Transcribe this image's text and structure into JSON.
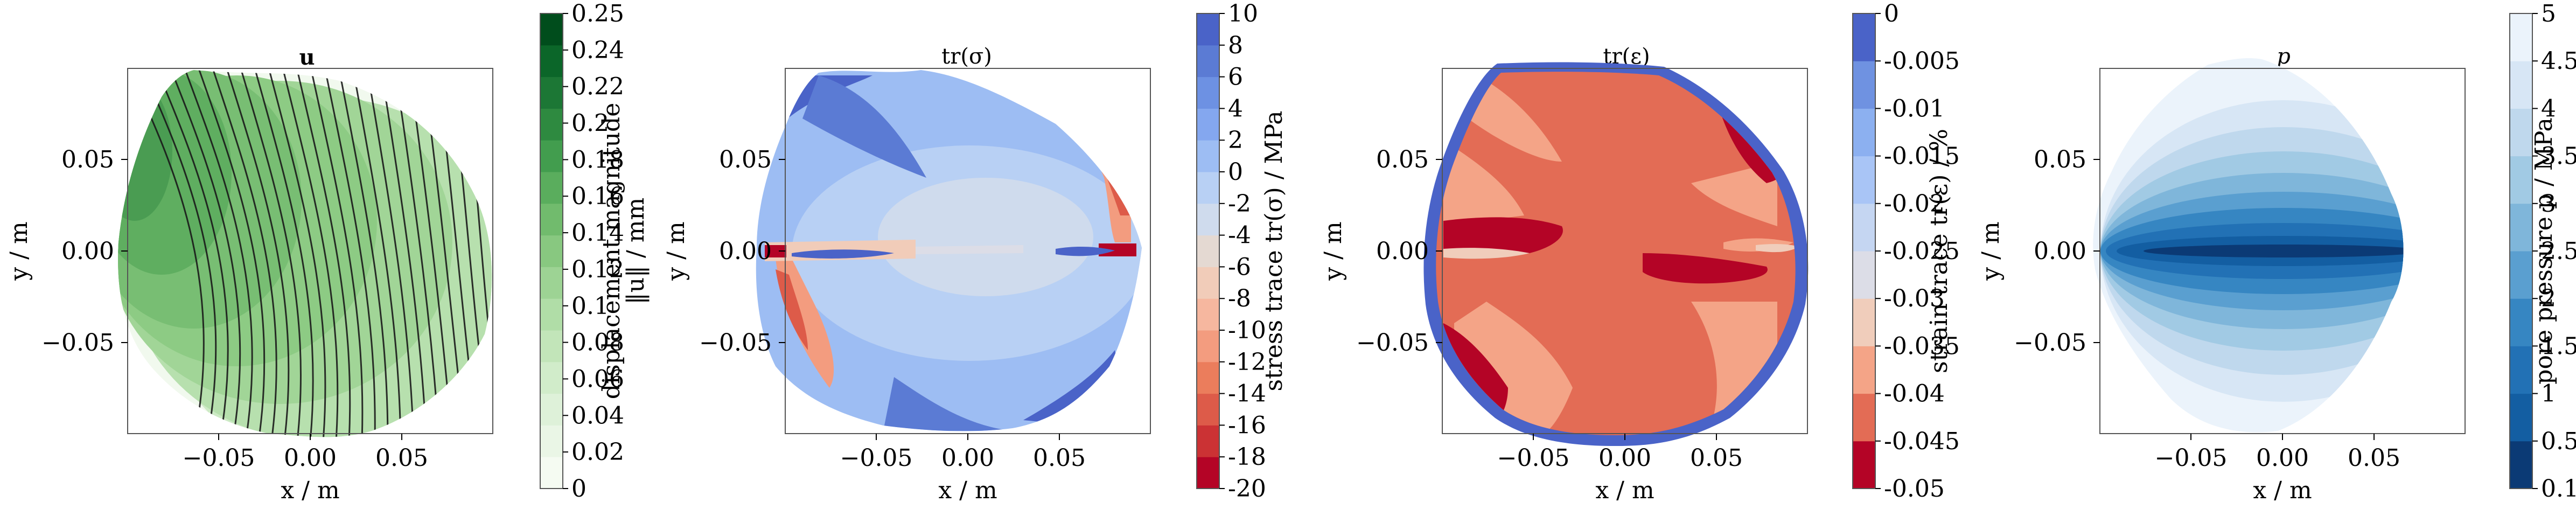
{
  "chart_data": [
    {
      "type": "contour",
      "title": "u",
      "xlabel": "x / m",
      "ylabel": "y / m",
      "xlim": [
        -0.1,
        0.1
      ],
      "ylim": [
        -0.1,
        0.1
      ],
      "x_ticks": [
        "−0.05",
        "0.00",
        "0.05"
      ],
      "y_ticks": [
        "0.05",
        "0.00",
        "−0.05"
      ],
      "colorbar": {
        "label": "displacement magnitude",
        "label2": "‖u‖ / mm",
        "ticks": [
          "0.25",
          "0.24",
          "0.22",
          "0.2",
          "0.18",
          "0.16",
          "0.14",
          "0.12",
          "0.1",
          "0.08",
          "0.06",
          "0.04",
          "0.02",
          "0"
        ],
        "colors": [
          "#f5fbf2",
          "#eaf6e6",
          "#def1d9",
          "#d1ecca",
          "#c2e5b9",
          "#b0dda7",
          "#9dd394",
          "#88c880",
          "#71bb6d",
          "#5aad5d",
          "#429d4e",
          "#2e8a40",
          "#1c7735",
          "#0b6629",
          "#004d1c"
        ]
      },
      "streamlines": true
    },
    {
      "type": "contour",
      "title": "tr(σ)",
      "xlabel": "x / m",
      "ylabel": "y / m",
      "xlim": [
        -0.1,
        0.1
      ],
      "ylim": [
        -0.1,
        0.1
      ],
      "x_ticks": [
        "−0.05",
        "0.00",
        "0.05"
      ],
      "y_ticks": [
        "0.05",
        "0.00",
        "−0.05"
      ],
      "colorbar": {
        "label": "stress trace tr(σ) / MPa",
        "ticks": [
          "10",
          "8",
          "6",
          "4",
          "2",
          "0",
          "-2",
          "-4",
          "-6",
          "-8",
          "-10",
          "-12",
          "-14",
          "-16",
          "-18",
          "-20"
        ],
        "colors": [
          "#b40426",
          "#cb3234",
          "#dd5b49",
          "#eb7d5c",
          "#f39c7f",
          "#f6b79f",
          "#f1ccb9",
          "#e4d9d2",
          "#cfdbed",
          "#b8d0f4",
          "#9dbdf3",
          "#84a7ef",
          "#6d91e3",
          "#5b7bd4",
          "#4a63c8"
        ]
      }
    },
    {
      "type": "contour",
      "title": "tr(ε)",
      "xlabel": "x / m",
      "ylabel": "y / m",
      "xlim": [
        -0.1,
        0.1
      ],
      "ylim": [
        -0.1,
        0.1
      ],
      "x_ticks": [
        "−0.05",
        "0.00",
        "0.05"
      ],
      "y_ticks": [
        "0.05",
        "0.00",
        "−0.05"
      ],
      "colorbar": {
        "label": "strain trace tr(ε) / %",
        "ticks": [
          "0",
          "-0.005",
          "-0.01",
          "-0.015",
          "-0.02",
          "-0.025",
          "-0.03",
          "-0.035",
          "-0.04",
          "-0.045",
          "-0.05"
        ],
        "colors": [
          "#b40426",
          "#e36c55",
          "#f4a487",
          "#f0cdbb",
          "#dcdde7",
          "#c5d6f2",
          "#a9c5f6",
          "#8cb0f0",
          "#6f92e1",
          "#4a63c8"
        ]
      }
    },
    {
      "type": "contour",
      "title": "p",
      "xlabel": "x / m",
      "ylabel": "y / m",
      "xlim": [
        -0.1,
        0.1
      ],
      "ylim": [
        -0.1,
        0.1
      ],
      "x_ticks": [
        "−0.05",
        "0.00",
        "0.05"
      ],
      "y_ticks": [
        "0.05",
        "0.00",
        "−0.05"
      ],
      "colorbar": {
        "label": "pore pressure p / MPa",
        "ticks": [
          "5",
          "4.5",
          "4",
          "3.5",
          "3",
          "2.5",
          "2",
          "1.5",
          "1",
          "0.5",
          "0.1"
        ],
        "colors": [
          "#0b3a75",
          "#135ea2",
          "#2271b5",
          "#3686c2",
          "#5a9fd0",
          "#7fb6da",
          "#a1cae4",
          "#bfd8ed",
          "#d7e6f5",
          "#ebf3fb"
        ]
      }
    }
  ]
}
